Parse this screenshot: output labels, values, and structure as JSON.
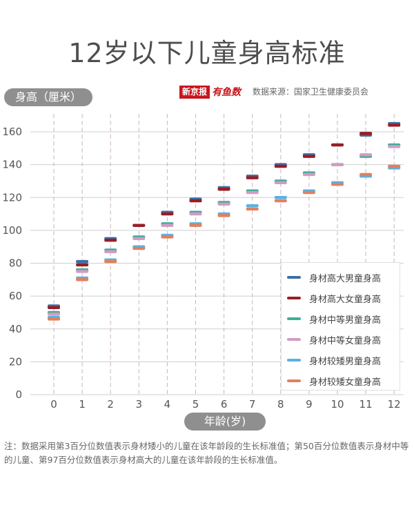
{
  "title": "12岁以下儿童身高标准",
  "brand": {
    "logo_text": "新京报",
    "script_text": "有鱼数"
  },
  "source_text": "数据来源：国家卫生健康委员会",
  "note": "注：数据采用第3百分位数值表示身材矮小的儿童在该年龄段的生长标准值；第50百分位数值表示身材中等的儿童、第97百分位数值表示身材高大的儿童在该年龄段的生长标准值。",
  "chart_data": {
    "type": "scatter",
    "xlabel": "年龄(岁)",
    "ylabel": "身高（厘米）",
    "ylim": [
      0,
      165
    ],
    "yticks": [
      0,
      20,
      40,
      60,
      80,
      100,
      120,
      140,
      160
    ],
    "x": [
      0,
      1,
      2,
      3,
      4,
      5,
      6,
      7,
      8,
      9,
      10,
      11,
      12
    ],
    "grid": true,
    "legend_position": "bottom-right",
    "series": [
      {
        "name": "身材高大男童身高",
        "color": "#3b6fa4",
        "values": [
          54,
          81,
          95,
          103,
          111,
          119,
          126,
          133,
          140,
          146,
          152,
          158,
          165
        ]
      },
      {
        "name": "身材高大女童身高",
        "color": "#9b1c24",
        "values": [
          53,
          79,
          94,
          103,
          110,
          118,
          125,
          132,
          139,
          145,
          152,
          159,
          164
        ]
      },
      {
        "name": "身材中等男童身高",
        "color": "#3fae98",
        "values": [
          50,
          76,
          88,
          96,
          104,
          111,
          117,
          124,
          130,
          135,
          140,
          145,
          152
        ]
      },
      {
        "name": "身材中等女童身高",
        "color": "#d39bc4",
        "values": [
          49,
          75,
          87,
          95,
          103,
          110,
          116,
          123,
          129,
          134,
          140,
          146,
          151
        ]
      },
      {
        "name": "身材较矮男童身高",
        "color": "#5cb0e0",
        "values": [
          47,
          71,
          82,
          90,
          97,
          104,
          110,
          115,
          120,
          124,
          129,
          133,
          138
        ]
      },
      {
        "name": "身材较矮女童身高",
        "color": "#e0815e",
        "values": [
          46,
          70,
          81,
          89,
          96,
          103,
          109,
          113,
          118,
          123,
          128,
          134,
          139
        ]
      }
    ]
  }
}
